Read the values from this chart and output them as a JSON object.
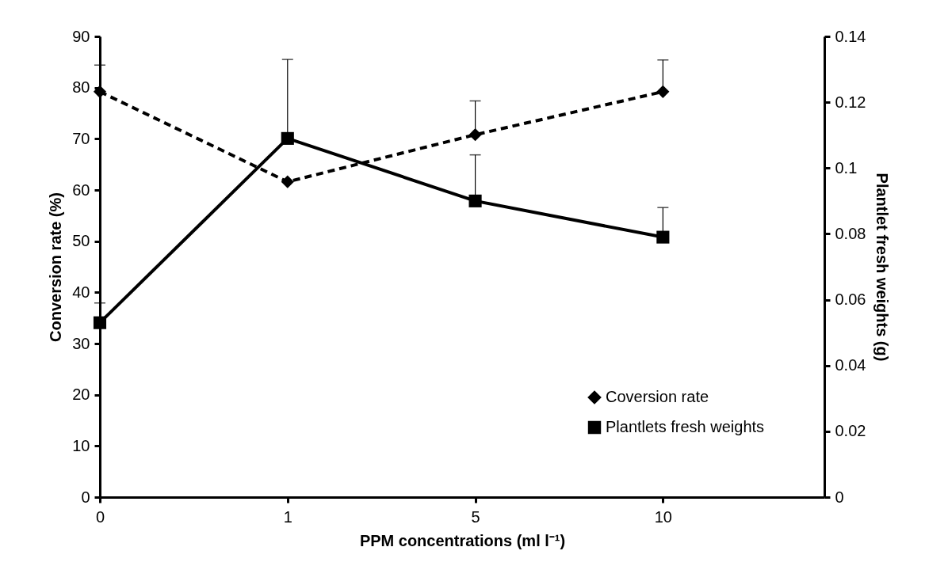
{
  "chart_data": {
    "type": "line",
    "xlabel": "PPM concentrations (ml l⁻¹)",
    "ylabel": "Conversion rate (%)",
    "y2label": "Plantlet fresh weights (g)",
    "categories": [
      "0",
      "1",
      "5",
      "10"
    ],
    "ylim": [
      0,
      90
    ],
    "yticks": [
      0,
      10,
      20,
      30,
      40,
      50,
      60,
      70,
      80,
      90
    ],
    "y2lim": [
      0,
      0.14
    ],
    "y2ticks": [
      0,
      0.02,
      0.04,
      0.06,
      0.08,
      0.1,
      0.12,
      0.14
    ],
    "legend": "bottom right",
    "series": [
      {
        "name": "Coversion rate",
        "color": "#000000",
        "values": [
          79.2,
          61.6,
          70.8,
          79.2
        ],
        "errors": [
          [
            79.2,
            84.4
          ],
          null,
          [
            70.8,
            77.4
          ],
          [
            79.2,
            85.4
          ]
        ],
        "marker": "diamond",
        "line_style": "dashed"
      },
      {
        "name": "Plantlets fresh weights",
        "color": "#000000",
        "axis": "y2",
        "values": [
          0.053,
          0.109,
          0.09,
          0.079
        ],
        "errors": [
          [
            0.053,
            0.059
          ],
          [
            0.109,
            0.133
          ],
          [
            0.09,
            0.104
          ],
          [
            0.079,
            0.088
          ]
        ],
        "marker": "square",
        "line_style": "solid"
      }
    ]
  }
}
